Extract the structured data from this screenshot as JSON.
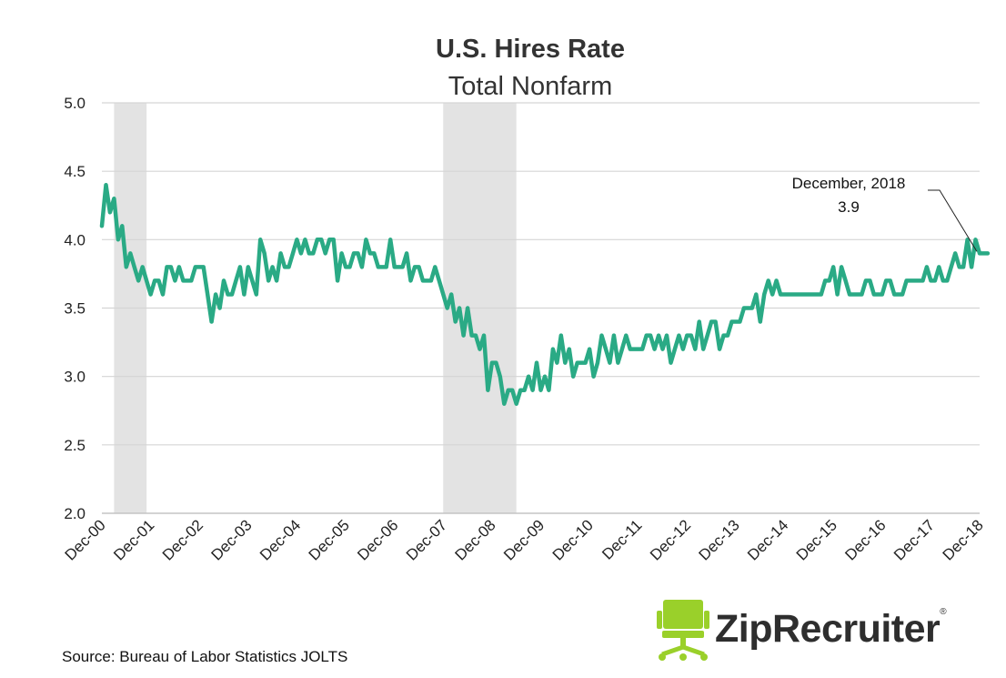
{
  "chart_data": {
    "type": "line",
    "title": "U.S. Hires Rate",
    "subtitle": "Total Nonfarm",
    "ylim": [
      2.0,
      5.0
    ],
    "yticks": [
      "5.0",
      "4.5",
      "4.0",
      "3.5",
      "3.0",
      "2.5",
      "2.0"
    ],
    "xticks": [
      "Dec-00",
      "Dec-01",
      "Dec-02",
      "Dec-03",
      "Dec-04",
      "Dec-05",
      "Dec-06",
      "Dec-07",
      "Dec-08",
      "Dec-09",
      "Dec-10",
      "Dec-11",
      "Dec-12",
      "Dec-13",
      "Dec-14",
      "Dec-15",
      "Dec-16",
      "Dec-17",
      "Dec-18"
    ],
    "x_unit": "months since Dec-00",
    "recessions": [
      [
        3,
        11
      ],
      [
        84,
        102
      ]
    ],
    "series": [
      {
        "name": "Hires rate",
        "color": "#2aaa85",
        "values": [
          4.1,
          4.4,
          4.2,
          4.3,
          4.0,
          4.1,
          3.8,
          3.9,
          3.8,
          3.7,
          3.8,
          3.7,
          3.6,
          3.7,
          3.7,
          3.6,
          3.8,
          3.8,
          3.7,
          3.8,
          3.7,
          3.7,
          3.7,
          3.8,
          3.8,
          3.8,
          3.6,
          3.4,
          3.6,
          3.5,
          3.7,
          3.6,
          3.6,
          3.7,
          3.8,
          3.6,
          3.8,
          3.7,
          3.6,
          4.0,
          3.9,
          3.7,
          3.8,
          3.7,
          3.9,
          3.8,
          3.8,
          3.9,
          4.0,
          3.9,
          4.0,
          3.9,
          3.9,
          4.0,
          4.0,
          3.9,
          4.0,
          4.0,
          3.7,
          3.9,
          3.8,
          3.8,
          3.9,
          3.9,
          3.8,
          4.0,
          3.9,
          3.9,
          3.8,
          3.8,
          3.8,
          4.0,
          3.8,
          3.8,
          3.8,
          3.9,
          3.7,
          3.8,
          3.8,
          3.7,
          3.7,
          3.7,
          3.8,
          3.7,
          3.6,
          3.5,
          3.6,
          3.4,
          3.5,
          3.3,
          3.5,
          3.3,
          3.3,
          3.2,
          3.3,
          2.9,
          3.1,
          3.1,
          3.0,
          2.8,
          2.9,
          2.9,
          2.8,
          2.9,
          2.9,
          3.0,
          2.9,
          3.1,
          2.9,
          3.0,
          2.9,
          3.2,
          3.1,
          3.3,
          3.1,
          3.2,
          3.0,
          3.1,
          3.1,
          3.1,
          3.2,
          3.0,
          3.1,
          3.3,
          3.2,
          3.1,
          3.3,
          3.1,
          3.2,
          3.3,
          3.2,
          3.2,
          3.2,
          3.2,
          3.3,
          3.3,
          3.2,
          3.3,
          3.2,
          3.3,
          3.1,
          3.2,
          3.3,
          3.2,
          3.3,
          3.3,
          3.2,
          3.4,
          3.2,
          3.3,
          3.4,
          3.4,
          3.2,
          3.3,
          3.3,
          3.4,
          3.4,
          3.4,
          3.5,
          3.5,
          3.5,
          3.6,
          3.4,
          3.6,
          3.7,
          3.6,
          3.7,
          3.6,
          3.6,
          3.6,
          3.6,
          3.6,
          3.6,
          3.6,
          3.6,
          3.6,
          3.6,
          3.6,
          3.7,
          3.7,
          3.8,
          3.6,
          3.8,
          3.7,
          3.6,
          3.6,
          3.6,
          3.6,
          3.7,
          3.7,
          3.6,
          3.6,
          3.6,
          3.7,
          3.7,
          3.6,
          3.6,
          3.6,
          3.7,
          3.7,
          3.7,
          3.7,
          3.7,
          3.8,
          3.7,
          3.7,
          3.8,
          3.7,
          3.7,
          3.8,
          3.9,
          3.8,
          3.8,
          4.0,
          3.8,
          4.0,
          3.9,
          3.9,
          3.9
        ]
      }
    ],
    "annotation": {
      "label": "December, 2018",
      "value": "3.9",
      "index": 216
    }
  },
  "source": "Source: Bureau of Labor Statistics JOLTS",
  "logo": {
    "text": "ZipRecruiter",
    "reg": "®",
    "icon": "office-chair-icon",
    "icon_color": "#9ad02a"
  },
  "colors": {
    "line": "#2aaa85",
    "recession": "#e3e3e3",
    "grid": "#d5d5d5"
  }
}
